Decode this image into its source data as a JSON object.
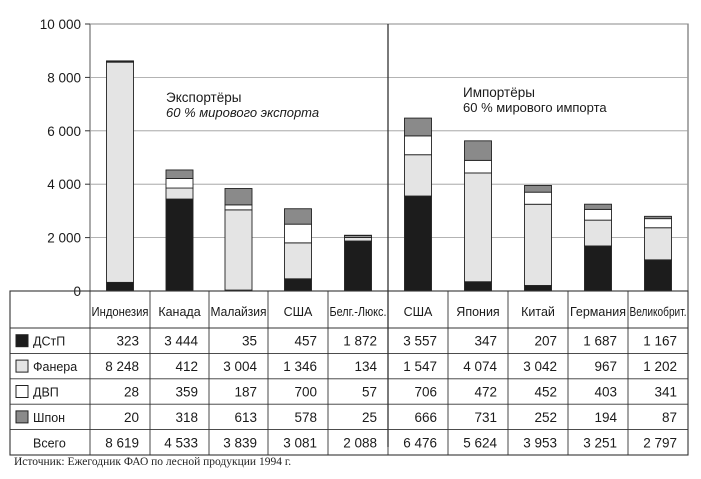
{
  "chart_data": {
    "type": "bar",
    "stacked": true,
    "ylim": [
      0,
      10000
    ],
    "yticks": [
      "0",
      "2 000",
      "4 000",
      "6 000",
      "8 000",
      "10 000"
    ],
    "ytick_values": [
      0,
      2000,
      4000,
      6000,
      8000,
      10000
    ],
    "grid": true,
    "categories": [
      "Индонезия",
      "Канада",
      "Малайзия",
      "США",
      "Белг.-Люкс.",
      "США",
      "Япония",
      "Китай",
      "Германия",
      "Великобрит."
    ],
    "series": [
      {
        "name": "ДСтП",
        "color": "#1c1c1c",
        "values": [
          323,
          3444,
          35,
          457,
          1872,
          3557,
          347,
          207,
          1687,
          1167
        ],
        "labels": [
          "323",
          "3 444",
          "35",
          "457",
          "1 872",
          "3 557",
          "347",
          "207",
          "1 687",
          "1 167"
        ]
      },
      {
        "name": "Фанера",
        "color": "#e4e4e4",
        "values": [
          8248,
          412,
          3004,
          1346,
          134,
          1547,
          4074,
          3042,
          967,
          1202
        ],
        "labels": [
          "8 248",
          "412",
          "3 004",
          "1 346",
          "134",
          "1 547",
          "4 074",
          "3 042",
          "967",
          "1 202"
        ]
      },
      {
        "name": "ДВП",
        "color": "#ffffff",
        "values": [
          28,
          359,
          187,
          700,
          57,
          706,
          472,
          452,
          403,
          341
        ],
        "labels": [
          "28",
          "359",
          "187",
          "700",
          "57",
          "706",
          "472",
          "452",
          "403",
          "341"
        ]
      },
      {
        "name": "Шпон",
        "color": "#8a8a8a",
        "values": [
          20,
          318,
          613,
          578,
          25,
          666,
          731,
          252,
          194,
          87
        ],
        "labels": [
          "20",
          "318",
          "613",
          "578",
          "25",
          "666",
          "731",
          "252",
          "194",
          "87"
        ]
      }
    ],
    "total": {
      "name": "Всего",
      "values": [
        8619,
        4533,
        3839,
        3081,
        2088,
        6476,
        5624,
        3953,
        3251,
        2797
      ],
      "labels": [
        "8 619",
        "4 533",
        "3 839",
        "3 081",
        "2 088",
        "6 476",
        "5 624",
        "3 953",
        "3 251",
        "2 797"
      ]
    },
    "annotations": [
      {
        "title": "Экспортёры",
        "subtitle": "60 % мирового экспорта"
      },
      {
        "title": "Импортёры",
        "subtitle": "60 % мирового импорта"
      }
    ]
  },
  "source": "Источник: Ежегодник ФАО по лесной продукции 1994 г."
}
